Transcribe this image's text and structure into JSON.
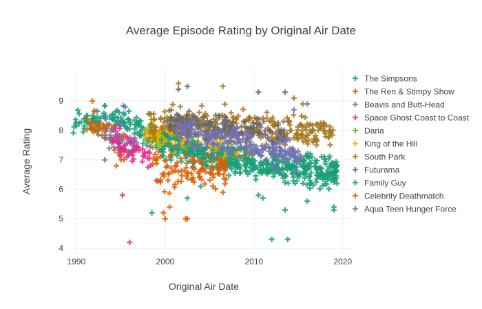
{
  "chart_data": {
    "type": "scatter",
    "marker": "cross",
    "title": "Average Episode Rating by Original Air Date",
    "xlabel": "Original Air Date",
    "ylabel": "Average Rating",
    "xlim": [
      1989,
      2021.1
    ],
    "ylim": [
      3.8,
      10.1
    ],
    "xticks": [
      1990,
      2000,
      2010,
      2020
    ],
    "yticks": [
      4,
      5,
      6,
      7,
      8,
      9
    ],
    "grid": true,
    "legend_position": "right",
    "series": [
      {
        "name": "The Simpsons",
        "color": "#1b9e77",
        "cloud": [
          [
            1990,
            8.2,
            0.35
          ],
          [
            1995,
            8.4,
            0.35
          ],
          [
            2000,
            7.6,
            0.4
          ],
          [
            2005,
            7.0,
            0.4
          ],
          [
            2010,
            6.8,
            0.35
          ],
          [
            2015,
            6.6,
            0.4
          ],
          [
            2019,
            6.5,
            0.45
          ]
        ],
        "outliers": [
          [
            1998.5,
            5.2
          ],
          [
            2002.5,
            5.7
          ],
          [
            2004,
            6.1
          ],
          [
            2010.5,
            5.8
          ],
          [
            2013.5,
            5.3
          ],
          [
            2016,
            5.6
          ],
          [
            2019,
            5.3
          ]
        ]
      },
      {
        "name": "The Ren & Stimpy Show",
        "color": "#d95f02",
        "cloud": [
          [
            1991.5,
            8.3,
            0.35
          ],
          [
            1993,
            8.0,
            0.4
          ],
          [
            1995,
            7.5,
            0.5
          ]
        ],
        "outliers": [
          [
            1991.8,
            9.0
          ],
          [
            1994.5,
            6.8
          ]
        ]
      },
      {
        "name": "Beavis and Butt-Head",
        "color": "#7570b3",
        "cloud": [
          [
            1993.5,
            7.8,
            0.45
          ],
          [
            1995,
            7.8,
            0.4
          ],
          [
            1996.5,
            7.6,
            0.4
          ]
        ],
        "outliers": [
          [
            1993.2,
            7.0
          ],
          [
            1995.5,
            8.8
          ]
        ]
      },
      {
        "name": "Space Ghost Coast to Coast",
        "color": "#e7298a",
        "cloud": [
          [
            1994.5,
            7.8,
            0.5
          ],
          [
            1996,
            7.3,
            0.5
          ],
          [
            1998,
            7.0,
            0.5
          ]
        ],
        "outliers": [
          [
            1996,
            4.2
          ],
          [
            1995.2,
            5.8
          ],
          [
            1999,
            6.3
          ]
        ]
      },
      {
        "name": "Daria",
        "color": "#66a61e",
        "cloud": [
          [
            1998,
            7.9,
            0.35
          ],
          [
            2000,
            7.8,
            0.35
          ],
          [
            2001.5,
            7.9,
            0.3
          ]
        ],
        "outliers": []
      },
      {
        "name": "King of the Hill",
        "color": "#e6ab02",
        "cloud": [
          [
            1998,
            7.9,
            0.3
          ],
          [
            2002,
            7.6,
            0.35
          ],
          [
            2006,
            7.5,
            0.35
          ],
          [
            2009.5,
            7.2,
            0.35
          ]
        ],
        "outliers": [
          [
            2003,
            8.5
          ]
        ]
      },
      {
        "name": "South Park",
        "color": "#a6761d",
        "cloud": [
          [
            1998.5,
            8.2,
            0.45
          ],
          [
            2003,
            8.3,
            0.4
          ],
          [
            2008,
            8.3,
            0.4
          ],
          [
            2013,
            8.0,
            0.45
          ],
          [
            2018.5,
            7.9,
            0.4
          ]
        ],
        "outliers": [
          [
            2001.5,
            9.6
          ],
          [
            2006.5,
            9.5
          ],
          [
            2014.5,
            9.1
          ],
          [
            2015.5,
            8.9
          ]
        ]
      },
      {
        "name": "Futurama",
        "color": "#666666",
        "cloud": [
          [
            2000.5,
            8.2,
            0.4
          ],
          [
            2003,
            8.1,
            0.4
          ],
          [
            2011,
            7.9,
            0.4
          ],
          [
            2013,
            7.9,
            0.4
          ]
        ],
        "outliers": [
          [
            2002.5,
            9.5
          ],
          [
            2010.5,
            9.3
          ],
          [
            2013.5,
            9.3
          ],
          [
            2001.5,
            9.4
          ]
        ]
      },
      {
        "name": "Family Guy",
        "color": "#1b9e77",
        "cloud": [
          [
            2000,
            7.5,
            0.4
          ],
          [
            2005,
            7.3,
            0.35
          ],
          [
            2010,
            7.0,
            0.4
          ],
          [
            2015,
            6.9,
            0.35
          ],
          [
            2019,
            6.6,
            0.4
          ]
        ],
        "outliers": [
          [
            2012,
            4.3
          ],
          [
            2013.8,
            4.3
          ],
          [
            2011,
            5.7
          ],
          [
            2019,
            5.4
          ]
        ]
      },
      {
        "name": "Celebrity Deathmatch",
        "color": "#d95f02",
        "cloud": [
          [
            1999,
            6.8,
            0.5
          ],
          [
            2000,
            6.5,
            0.5
          ],
          [
            2001.5,
            6.6,
            0.45
          ],
          [
            2006.5,
            6.6,
            0.45
          ]
        ],
        "outliers": [
          [
            2000,
            5.0
          ],
          [
            2002.5,
            5.0
          ],
          [
            2000.5,
            5.4
          ],
          [
            1999.8,
            5.2
          ],
          [
            2006.5,
            5.9
          ],
          [
            2002.3,
            5.0
          ]
        ]
      },
      {
        "name": "Aqua Teen Hunger Force",
        "color": "#7570b3",
        "cloud": [
          [
            2001.5,
            8.0,
            0.4
          ],
          [
            2004,
            7.8,
            0.45
          ],
          [
            2008,
            7.6,
            0.45
          ],
          [
            2012,
            7.4,
            0.45
          ],
          [
            2015,
            7.2,
            0.45
          ]
        ],
        "outliers": [
          [
            2014.5,
            8.7
          ],
          [
            2016,
            8.9
          ]
        ]
      }
    ]
  }
}
